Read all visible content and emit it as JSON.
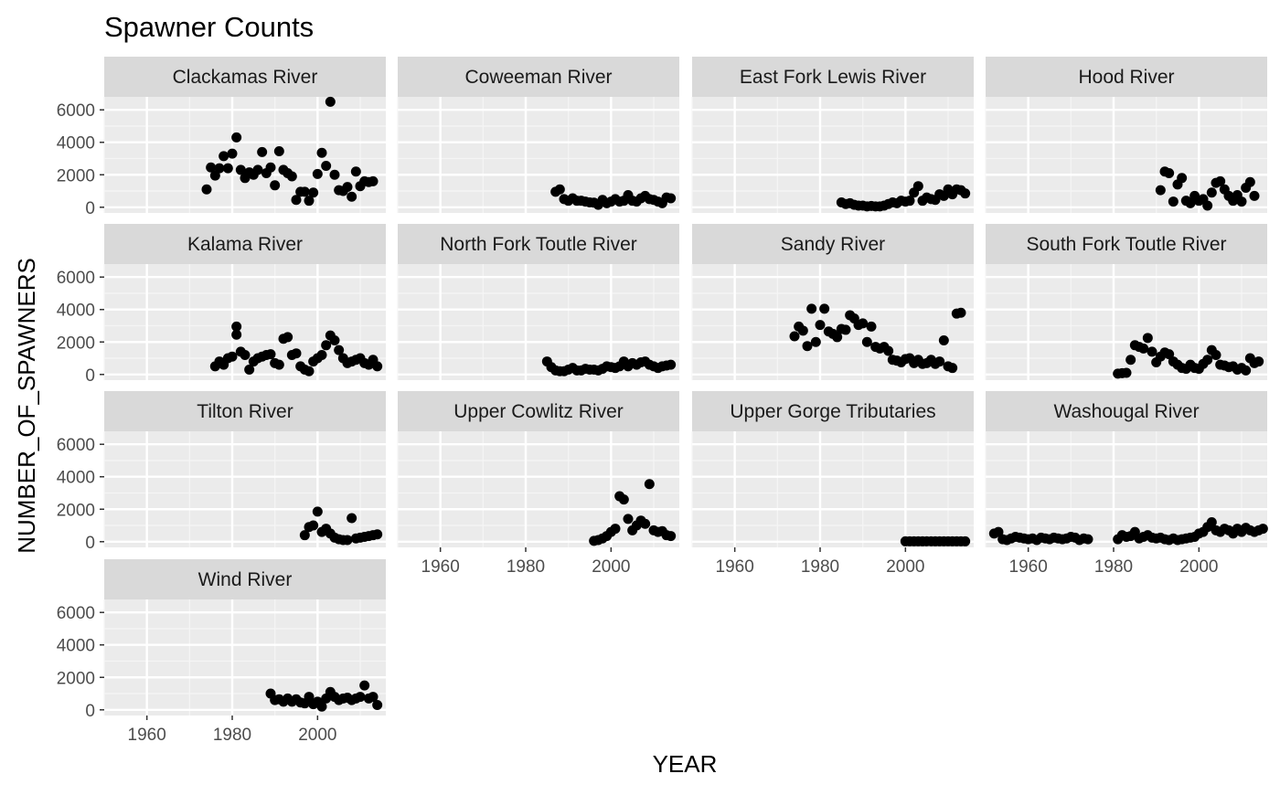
{
  "chart_data": {
    "type": "scatter",
    "title": "Spawner Counts",
    "xlabel": "YEAR",
    "ylabel": "NUMBER_OF_SPAWNERS",
    "xlim": [
      1950,
      2016
    ],
    "ylim": [
      -350,
      6800
    ],
    "x_ticks": [
      1960,
      1980,
      2000
    ],
    "y_ticks": [
      0,
      2000,
      4000,
      6000
    ],
    "grid": true,
    "facets": [
      {
        "name": "Clackamas River",
        "x": [
          1974,
          1975,
          1976,
          1977,
          1978,
          1979,
          1980,
          1981,
          1982,
          1983,
          1984,
          1985,
          1986,
          1987,
          1988,
          1989,
          1990,
          1991,
          1992,
          1993,
          1994,
          1995,
          1996,
          1997,
          1998,
          1999,
          2000,
          2001,
          2002,
          2003,
          2004,
          2005,
          2006,
          2007,
          2008,
          2009,
          2010,
          2011,
          2012,
          2013
        ],
        "y": [
          1100,
          2450,
          1950,
          2400,
          3150,
          2400,
          3300,
          4300,
          2300,
          1800,
          2150,
          2000,
          2300,
          3400,
          2100,
          2450,
          1350,
          3450,
          2300,
          2100,
          1900,
          450,
          950,
          950,
          400,
          900,
          2050,
          3350,
          2550,
          6500,
          2000,
          1050,
          1000,
          1250,
          650,
          2200,
          1300,
          1600,
          1550,
          1600
        ]
      },
      {
        "name": "Coweeman River",
        "x": [
          1987,
          1988,
          1989,
          1990,
          1991,
          1992,
          1993,
          1994,
          1995,
          1996,
          1997,
          1998,
          1999,
          2000,
          2001,
          2002,
          2003,
          2004,
          2005,
          2006,
          2007,
          2008,
          2009,
          2010,
          2011,
          2012,
          2013,
          2014
        ],
        "y": [
          950,
          1100,
          500,
          400,
          550,
          400,
          400,
          350,
          300,
          280,
          150,
          450,
          250,
          350,
          500,
          350,
          400,
          750,
          400,
          350,
          550,
          700,
          500,
          450,
          350,
          250,
          600,
          550
        ]
      },
      {
        "name": "East Fork Lewis River",
        "x": [
          1985,
          1986,
          1987,
          1988,
          1989,
          1990,
          1991,
          1992,
          1993,
          1994,
          1995,
          1996,
          1997,
          1998,
          1999,
          2000,
          2001,
          2002,
          2003,
          2004,
          2005,
          2006,
          2007,
          2008,
          2009,
          2010,
          2011,
          2012,
          2013,
          2014
        ],
        "y": [
          300,
          200,
          250,
          150,
          100,
          100,
          50,
          80,
          50,
          50,
          100,
          200,
          300,
          250,
          400,
          350,
          400,
          900,
          1300,
          400,
          600,
          500,
          450,
          800,
          700,
          1100,
          800,
          1100,
          1050,
          850
        ]
      },
      {
        "name": "Hood River",
        "x": [
          1991,
          1992,
          1993,
          1994,
          1995,
          1996,
          1997,
          1998,
          1999,
          2000,
          2001,
          2002,
          2003,
          2004,
          2005,
          2006,
          2007,
          2008,
          2009,
          2010,
          2011,
          2012,
          2013
        ],
        "y": [
          1050,
          2200,
          2100,
          350,
          1400,
          1800,
          400,
          250,
          700,
          400,
          500,
          100,
          900,
          1500,
          1600,
          1100,
          700,
          400,
          750,
          350,
          1200,
          1550,
          700
        ]
      },
      {
        "name": "Kalama River",
        "x": [
          1976,
          1977,
          1978,
          1979,
          1980,
          1981,
          1981,
          1982,
          1983,
          1984,
          1985,
          1986,
          1987,
          1988,
          1989,
          1990,
          1991,
          1992,
          1993,
          1994,
          1995,
          1996,
          1997,
          1998,
          1999,
          2000,
          2001,
          2002,
          2003,
          2004,
          2005,
          2006,
          2007,
          2008,
          2009,
          2010,
          2011,
          2012,
          2013,
          2014
        ],
        "y": [
          500,
          800,
          600,
          1000,
          1100,
          2950,
          2450,
          1400,
          1200,
          300,
          800,
          1000,
          1100,
          1200,
          1250,
          700,
          600,
          2200,
          2300,
          1200,
          1300,
          500,
          300,
          200,
          800,
          1000,
          1200,
          1800,
          2400,
          2100,
          1500,
          1000,
          700,
          800,
          900,
          1000,
          700,
          600,
          900,
          500
        ]
      },
      {
        "name": "North Fork Toutle River",
        "x": [
          1985,
          1986,
          1987,
          1988,
          1989,
          1990,
          1991,
          1992,
          1993,
          1994,
          1995,
          1996,
          1997,
          1998,
          1999,
          2000,
          2001,
          2002,
          2003,
          2004,
          2005,
          2006,
          2007,
          2008,
          2009,
          2010,
          2011,
          2012,
          2013,
          2014
        ],
        "y": [
          800,
          450,
          250,
          200,
          200,
          300,
          400,
          250,
          250,
          350,
          300,
          300,
          250,
          350,
          500,
          450,
          400,
          500,
          800,
          500,
          700,
          600,
          750,
          800,
          600,
          500,
          400,
          500,
          550,
          600
        ]
      },
      {
        "name": "Sandy River",
        "x": [
          1974,
          1975,
          1976,
          1977,
          1978,
          1979,
          1980,
          1981,
          1982,
          1983,
          1984,
          1985,
          1986,
          1987,
          1988,
          1989,
          1990,
          1991,
          1992,
          1993,
          1994,
          1995,
          1996,
          1997,
          1998,
          1999,
          2000,
          2001,
          2002,
          2003,
          2004,
          2005,
          2006,
          2007,
          2008,
          2009,
          2010,
          2011,
          2012,
          2013
        ],
        "y": [
          2350,
          2950,
          2700,
          1750,
          4050,
          2000,
          3050,
          4050,
          2650,
          2500,
          2300,
          2800,
          2750,
          3650,
          3450,
          3050,
          3150,
          2000,
          2950,
          1700,
          1600,
          1700,
          1450,
          900,
          850,
          750,
          950,
          1000,
          700,
          900,
          650,
          700,
          900,
          650,
          800,
          2100,
          500,
          400,
          3750,
          3800
        ]
      },
      {
        "name": "South Fork Toutle River",
        "x": [
          1981,
          1982,
          1983,
          1984,
          1985,
          1986,
          1987,
          1988,
          1989,
          1990,
          1991,
          1992,
          1993,
          1994,
          1995,
          1996,
          1997,
          1998,
          1999,
          2000,
          2001,
          2002,
          2003,
          2004,
          2005,
          2006,
          2007,
          2008,
          2009,
          2010,
          2011,
          2012,
          2013,
          2014
        ],
        "y": [
          50,
          80,
          100,
          900,
          1800,
          1700,
          1600,
          2250,
          1400,
          750,
          1100,
          1350,
          1250,
          800,
          600,
          400,
          350,
          600,
          400,
          350,
          650,
          900,
          1500,
          1200,
          600,
          550,
          450,
          500,
          300,
          400,
          250,
          1000,
          700,
          800
        ]
      },
      {
        "name": "Tilton River",
        "x": [
          1997,
          1998,
          1999,
          2000,
          2001,
          2002,
          2003,
          2004,
          2005,
          2006,
          2007,
          2008,
          2009,
          2010,
          2011,
          2012,
          2013,
          2014
        ],
        "y": [
          400,
          900,
          1000,
          1850,
          600,
          800,
          500,
          250,
          150,
          100,
          100,
          1450,
          200,
          250,
          300,
          350,
          400,
          450
        ]
      },
      {
        "name": "Upper Cowlitz River",
        "x": [
          1996,
          1997,
          1998,
          1999,
          2000,
          2001,
          2002,
          2003,
          2004,
          2005,
          2006,
          2007,
          2008,
          2009,
          2010,
          2011,
          2012,
          2013,
          2014
        ],
        "y": [
          50,
          100,
          200,
          350,
          600,
          800,
          2800,
          2600,
          1400,
          700,
          1000,
          1300,
          1100,
          3550,
          700,
          600,
          650,
          400,
          350
        ]
      },
      {
        "name": "Upper Gorge Tributaries",
        "x": [
          2000,
          2001,
          2002,
          2003,
          2004,
          2005,
          2006,
          2007,
          2008,
          2009,
          2010,
          2011,
          2012,
          2013,
          2014
        ],
        "y": [
          20,
          20,
          20,
          20,
          20,
          20,
          20,
          20,
          20,
          20,
          20,
          20,
          20,
          20,
          20
        ]
      },
      {
        "name": "Washougal River",
        "x": [
          1952,
          1953,
          1954,
          1955,
          1956,
          1957,
          1958,
          1959,
          1960,
          1961,
          1962,
          1963,
          1964,
          1965,
          1966,
          1967,
          1968,
          1969,
          1970,
          1971,
          1972,
          1973,
          1974,
          1981,
          1982,
          1983,
          1984,
          1985,
          1986,
          1987,
          1988,
          1989,
          1990,
          1991,
          1992,
          1993,
          1994,
          1995,
          1996,
          1997,
          1998,
          1999,
          2000,
          2001,
          2002,
          2003,
          2004,
          2005,
          2006,
          2007,
          2008,
          2009,
          2010,
          2011,
          2012,
          2013,
          2014,
          2015
        ],
        "y": [
          500,
          600,
          150,
          100,
          200,
          300,
          250,
          200,
          150,
          200,
          100,
          250,
          200,
          150,
          250,
          200,
          150,
          200,
          300,
          250,
          100,
          200,
          150,
          150,
          400,
          300,
          350,
          600,
          200,
          300,
          400,
          250,
          200,
          250,
          150,
          100,
          200,
          100,
          150,
          200,
          250,
          300,
          500,
          600,
          900,
          1200,
          700,
          600,
          800,
          700,
          500,
          800,
          600,
          850,
          700,
          600,
          700,
          800
        ]
      },
      {
        "name": "Wind River",
        "x": [
          1989,
          1990,
          1991,
          1992,
          1993,
          1994,
          1995,
          1996,
          1997,
          1998,
          1999,
          2000,
          2001,
          2002,
          2003,
          2004,
          2005,
          2006,
          2007,
          2008,
          2009,
          2010,
          2011,
          2012,
          2013,
          2014
        ],
        "y": [
          1000,
          600,
          650,
          500,
          700,
          500,
          650,
          450,
          400,
          800,
          350,
          500,
          200,
          700,
          1100,
          800,
          600,
          700,
          750,
          600,
          700,
          800,
          1500,
          700,
          800,
          300
        ]
      }
    ]
  }
}
